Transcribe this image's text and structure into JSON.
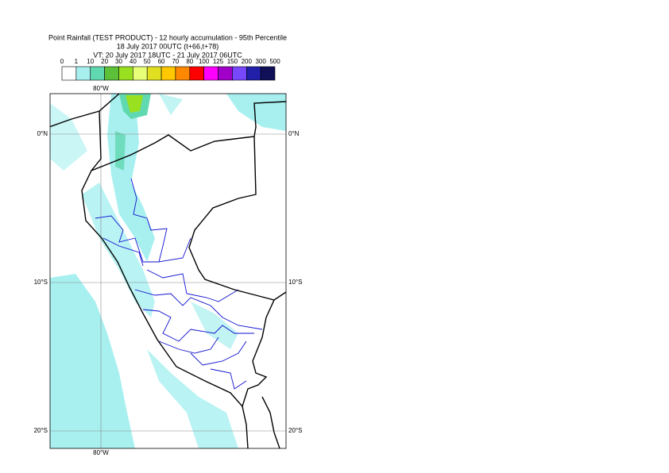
{
  "header": {
    "title": "Point Rainfall (TEST PRODUCT) - 12 hourly accumulation - 95th Percentile",
    "base_time": "18 July 2017 00UTC (t+66,t+78)",
    "valid_time": "VT: 20 July 2017 18UTC - 21 July 2017 06UTC"
  },
  "legend": {
    "labels": [
      0,
      1,
      10,
      20,
      30,
      40,
      50,
      60,
      70,
      80,
      100,
      125,
      150,
      200,
      300,
      500
    ],
    "colors": [
      "#ffffff",
      "#a8f0f0",
      "#60d8b0",
      "#5cc038",
      "#98e020",
      "#e8ff78",
      "#e0e020",
      "#ffc800",
      "#ff8800",
      "#ff0000",
      "#ff00ff",
      "#a000c8",
      "#7848ff",
      "#2020a8",
      "#101058"
    ]
  },
  "map": {
    "lon_labels": [
      "80°W"
    ],
    "lat_labels": [
      "0°N",
      "10°S",
      "20°S"
    ]
  }
}
